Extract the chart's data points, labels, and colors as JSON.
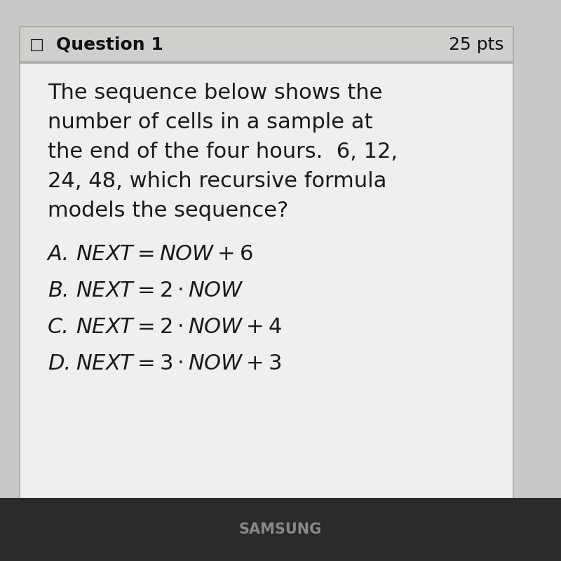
{
  "background_color": "#c8c8c8",
  "card_bg_color": "#f0efed",
  "header_bg_color": "#d0cfcc",
  "header_text": "Question 1",
  "header_pts": "25 pts",
  "header_icon": "□",
  "question_text_lines": [
    "The sequence below shows the",
    "number of cells in a sample at",
    "the end of the four hours.  6, 12,",
    "24, 48, which recursive formula",
    "models the sequence?"
  ],
  "choices": [
    {
      "label": "A.",
      "formula": "$NEXT = NOW + 6$"
    },
    {
      "label": "B.",
      "formula": "$NEXT = 2 \\cdot NOW$"
    },
    {
      "label": "C.",
      "formula": "$NEXT = 2 \\cdot NOW + 4$"
    },
    {
      "label": "D.",
      "formula": "$NEXT = 3 \\cdot NOW + 3$"
    }
  ],
  "footer_text": "SAMSUNG",
  "footer_bg_color": "#2a2a2a",
  "question_fontsize": 22,
  "choice_fontsize": 22,
  "header_fontsize": 18,
  "text_color": "#1a1a1a",
  "header_text_color": "#111111"
}
